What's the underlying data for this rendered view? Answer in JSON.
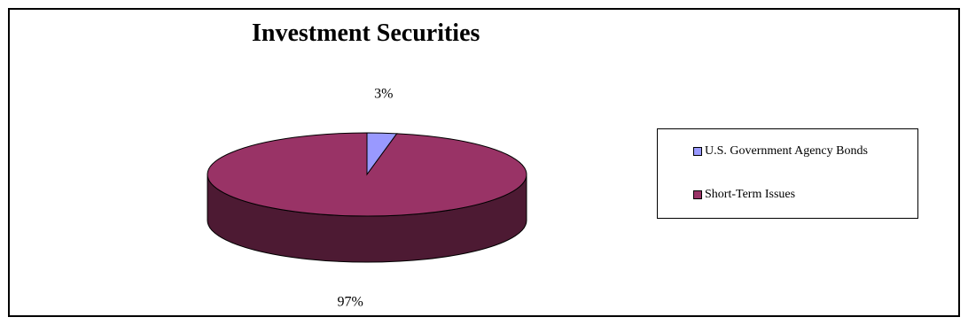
{
  "chart_data": {
    "type": "pie",
    "title": "Investment Securities",
    "slices": [
      {
        "label": "U.S. Government Agency Bonds",
        "value": 3,
        "display": "3%",
        "color": "#9999ff"
      },
      {
        "label": "Short-Term Issues",
        "value": 97,
        "display": "97%",
        "color": "#993366",
        "side_color": "#4d1a33"
      }
    ],
    "legend_position": "right",
    "three_d": true
  }
}
